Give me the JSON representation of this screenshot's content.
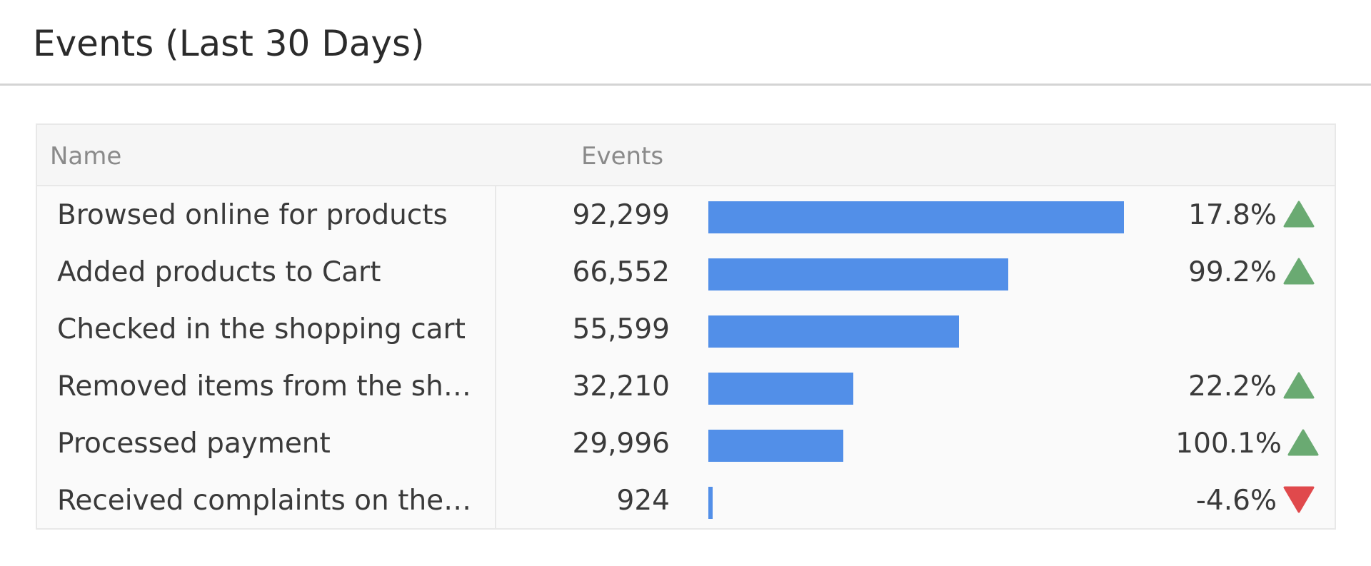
{
  "widget": {
    "title": "Events (Last 30 Days)"
  },
  "table": {
    "columns": {
      "name": "Name",
      "events": "Events"
    },
    "max_events": 92299,
    "rows": [
      {
        "name": "Browsed online for products",
        "value": "92,299",
        "events": 92299,
        "change": "17.8%",
        "trend": "up",
        "trend_icon": "triangle-up-icon"
      },
      {
        "name": "Added products to Cart",
        "value": "66,552",
        "events": 66552,
        "change": "99.2%",
        "trend": "up",
        "trend_icon": "triangle-up-icon"
      },
      {
        "name": "Checked in the shopping cart",
        "value": "55,599",
        "events": 55599,
        "change": "",
        "trend": "none",
        "trend_icon": ""
      },
      {
        "name": "Removed items from the sh…",
        "value": "32,210",
        "events": 32210,
        "change": "22.2%",
        "trend": "up",
        "trend_icon": "triangle-up-icon"
      },
      {
        "name": "Processed payment",
        "value": "29,996",
        "events": 29996,
        "change": "100.1%",
        "trend": "up",
        "trend_icon": "triangle-up-icon"
      },
      {
        "name": "Received complaints on the …",
        "value": "924",
        "events": 924,
        "change": "-4.6%",
        "trend": "down",
        "trend_icon": "triangle-down-icon"
      }
    ]
  },
  "colors": {
    "bar": "#528fe8",
    "trend_up": "#6aaa72",
    "trend_down": "#e0494c"
  }
}
